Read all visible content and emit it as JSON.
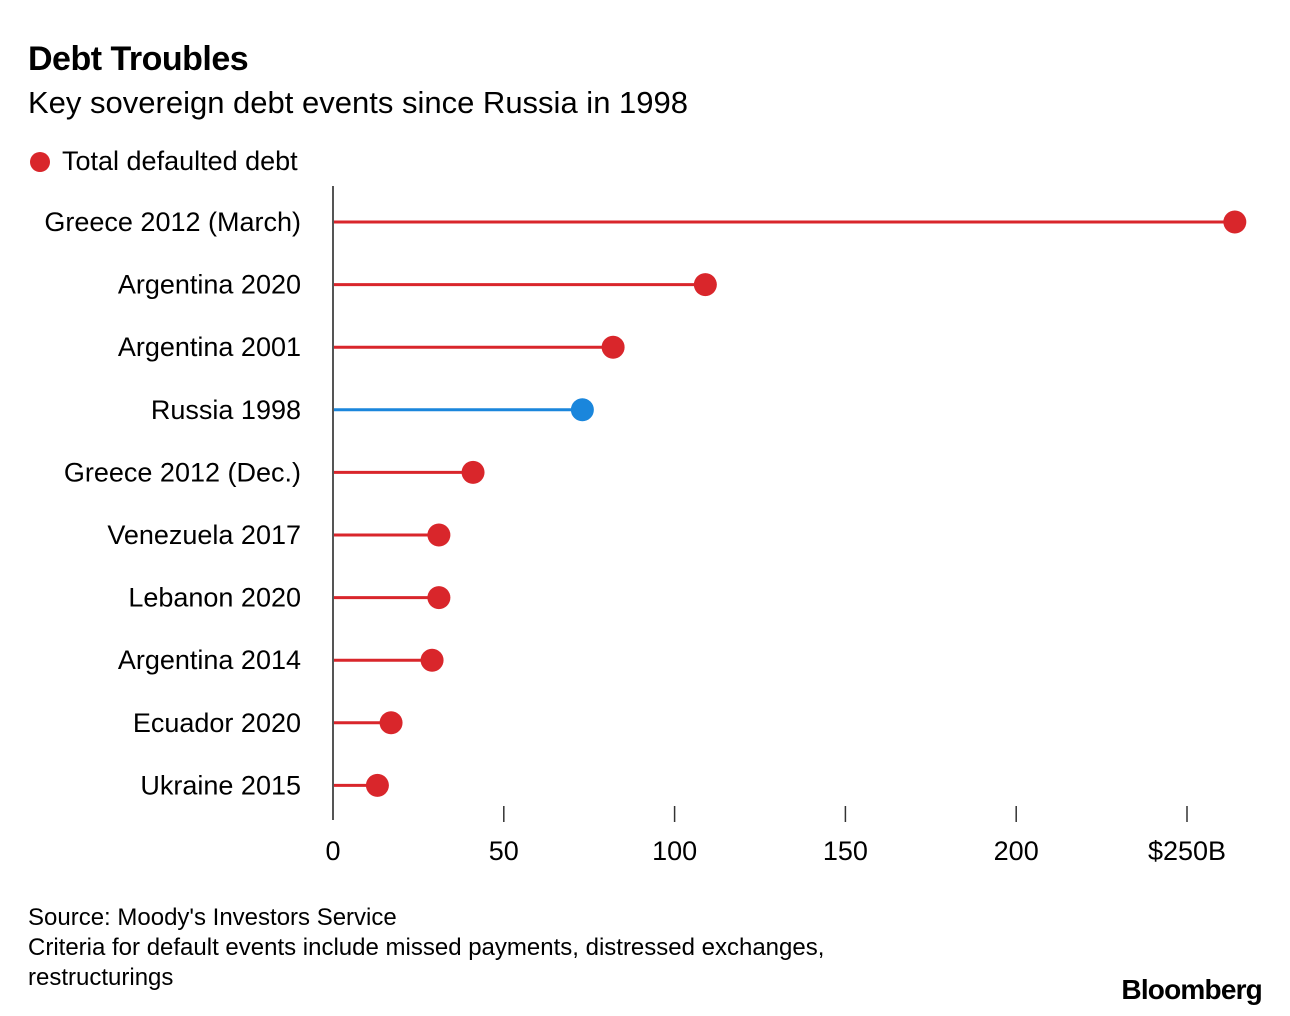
{
  "title": "Debt Troubles",
  "subtitle": "Key sovereign debt events since Russia in 1998",
  "legend": {
    "label": "Total defaulted debt",
    "color": "#d9262b"
  },
  "source": "Source: Moody's Investors Service",
  "note_line1": "Criteria for default events include missed payments, distressed exchanges,",
  "note_line2": "restructurings",
  "brand": "Bloomberg",
  "chart_data": {
    "type": "lollipop",
    "orientation": "horizontal",
    "xlim": [
      0,
      265
    ],
    "x_ticks": [
      0,
      50,
      100,
      150,
      200,
      250
    ],
    "x_tick_labels": [
      "0",
      "50",
      "100",
      "150",
      "200",
      "$250B"
    ],
    "colors": {
      "default": "#d9262b",
      "highlight": "#1a86dc"
    },
    "categories": [
      "Greece 2012 (March)",
      "Argentina 2020",
      "Argentina 2001",
      "Russia 1998",
      "Greece 2012 (Dec.)",
      "Venezuela 2017",
      "Lebanon 2020",
      "Argentina 2014",
      "Ecuador 2020",
      "Ukraine 2015"
    ],
    "values": [
      264,
      109,
      82,
      73,
      41,
      31,
      31,
      29,
      17,
      13
    ],
    "highlighted": [
      "Russia 1998"
    ]
  }
}
